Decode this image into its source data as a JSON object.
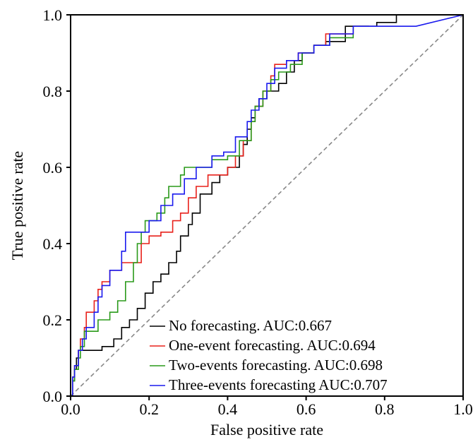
{
  "chart_data": {
    "type": "line",
    "title": "",
    "xlabel": "False positive rate",
    "ylabel": "True positive rate",
    "xlim": [
      0,
      1
    ],
    "ylim": [
      0,
      1
    ],
    "xticks": [
      0.0,
      0.2,
      0.4,
      0.6,
      0.8,
      1.0
    ],
    "yticks": [
      0.0,
      0.2,
      0.4,
      0.6,
      0.8,
      1.0
    ],
    "xtick_labels": [
      "0.0",
      "0.2",
      "0.4",
      "0.6",
      "0.8",
      "1.0"
    ],
    "ytick_labels": [
      "0.0",
      "0.2",
      "0.4",
      "0.6",
      "0.8",
      "1.0"
    ],
    "grid": false,
    "legend_position": "bottom-right",
    "diagonal": {
      "style": "dashed",
      "color": "#888888",
      "points": [
        [
          0,
          0
        ],
        [
          1,
          1
        ]
      ]
    },
    "series": [
      {
        "name": "No forecasting. AUC:0.667",
        "color": "#000000",
        "points": [
          [
            0,
            0
          ],
          [
            0.005,
            0
          ],
          [
            0.005,
            0.04
          ],
          [
            0.01,
            0.04
          ],
          [
            0.01,
            0.07
          ],
          [
            0.015,
            0.07
          ],
          [
            0.015,
            0.1
          ],
          [
            0.02,
            0.1
          ],
          [
            0.02,
            0.12
          ],
          [
            0.08,
            0.12
          ],
          [
            0.08,
            0.13
          ],
          [
            0.11,
            0.13
          ],
          [
            0.11,
            0.15
          ],
          [
            0.13,
            0.15
          ],
          [
            0.13,
            0.18
          ],
          [
            0.15,
            0.18
          ],
          [
            0.15,
            0.2
          ],
          [
            0.17,
            0.2
          ],
          [
            0.17,
            0.23
          ],
          [
            0.19,
            0.23
          ],
          [
            0.19,
            0.27
          ],
          [
            0.21,
            0.27
          ],
          [
            0.21,
            0.3
          ],
          [
            0.23,
            0.3
          ],
          [
            0.23,
            0.32
          ],
          [
            0.25,
            0.32
          ],
          [
            0.25,
            0.35
          ],
          [
            0.27,
            0.35
          ],
          [
            0.27,
            0.38
          ],
          [
            0.28,
            0.38
          ],
          [
            0.28,
            0.42
          ],
          [
            0.3,
            0.42
          ],
          [
            0.3,
            0.45
          ],
          [
            0.31,
            0.45
          ],
          [
            0.31,
            0.48
          ],
          [
            0.33,
            0.48
          ],
          [
            0.33,
            0.53
          ],
          [
            0.36,
            0.53
          ],
          [
            0.36,
            0.56
          ],
          [
            0.38,
            0.56
          ],
          [
            0.38,
            0.58
          ],
          [
            0.4,
            0.58
          ],
          [
            0.4,
            0.6
          ],
          [
            0.43,
            0.6
          ],
          [
            0.43,
            0.63
          ],
          [
            0.44,
            0.63
          ],
          [
            0.44,
            0.66
          ],
          [
            0.45,
            0.66
          ],
          [
            0.45,
            0.7
          ],
          [
            0.46,
            0.7
          ],
          [
            0.46,
            0.73
          ],
          [
            0.47,
            0.73
          ],
          [
            0.47,
            0.76
          ],
          [
            0.48,
            0.76
          ],
          [
            0.48,
            0.78
          ],
          [
            0.5,
            0.78
          ],
          [
            0.5,
            0.8
          ],
          [
            0.53,
            0.8
          ],
          [
            0.53,
            0.82
          ],
          [
            0.55,
            0.82
          ],
          [
            0.55,
            0.85
          ],
          [
            0.57,
            0.85
          ],
          [
            0.57,
            0.88
          ],
          [
            0.59,
            0.88
          ],
          [
            0.59,
            0.9
          ],
          [
            0.62,
            0.9
          ],
          [
            0.62,
            0.92
          ],
          [
            0.65,
            0.92
          ],
          [
            0.65,
            0.93
          ],
          [
            0.7,
            0.93
          ],
          [
            0.7,
            0.97
          ],
          [
            0.78,
            0.97
          ],
          [
            0.78,
            0.98
          ],
          [
            0.83,
            0.98
          ],
          [
            0.83,
            1.0
          ],
          [
            1.0,
            1.0
          ]
        ]
      },
      {
        "name": "One-event forecasting. AUC:0.694",
        "color": "#e8201a",
        "points": [
          [
            0,
            0
          ],
          [
            0.005,
            0
          ],
          [
            0.005,
            0.05
          ],
          [
            0.01,
            0.05
          ],
          [
            0.01,
            0.08
          ],
          [
            0.02,
            0.08
          ],
          [
            0.02,
            0.12
          ],
          [
            0.025,
            0.12
          ],
          [
            0.025,
            0.15
          ],
          [
            0.035,
            0.15
          ],
          [
            0.035,
            0.18
          ],
          [
            0.04,
            0.18
          ],
          [
            0.04,
            0.22
          ],
          [
            0.06,
            0.22
          ],
          [
            0.06,
            0.25
          ],
          [
            0.07,
            0.25
          ],
          [
            0.07,
            0.28
          ],
          [
            0.08,
            0.28
          ],
          [
            0.08,
            0.3
          ],
          [
            0.1,
            0.3
          ],
          [
            0.1,
            0.33
          ],
          [
            0.13,
            0.33
          ],
          [
            0.13,
            0.35
          ],
          [
            0.18,
            0.35
          ],
          [
            0.18,
            0.4
          ],
          [
            0.2,
            0.4
          ],
          [
            0.2,
            0.42
          ],
          [
            0.23,
            0.42
          ],
          [
            0.23,
            0.43
          ],
          [
            0.26,
            0.43
          ],
          [
            0.26,
            0.46
          ],
          [
            0.28,
            0.46
          ],
          [
            0.28,
            0.48
          ],
          [
            0.3,
            0.48
          ],
          [
            0.3,
            0.52
          ],
          [
            0.32,
            0.52
          ],
          [
            0.32,
            0.55
          ],
          [
            0.35,
            0.55
          ],
          [
            0.35,
            0.58
          ],
          [
            0.4,
            0.58
          ],
          [
            0.4,
            0.6
          ],
          [
            0.42,
            0.6
          ],
          [
            0.42,
            0.63
          ],
          [
            0.44,
            0.63
          ],
          [
            0.44,
            0.67
          ],
          [
            0.46,
            0.67
          ],
          [
            0.46,
            0.72
          ],
          [
            0.47,
            0.72
          ],
          [
            0.47,
            0.76
          ],
          [
            0.49,
            0.76
          ],
          [
            0.49,
            0.8
          ],
          [
            0.51,
            0.8
          ],
          [
            0.51,
            0.84
          ],
          [
            0.52,
            0.84
          ],
          [
            0.52,
            0.87
          ],
          [
            0.55,
            0.87
          ],
          [
            0.55,
            0.88
          ],
          [
            0.58,
            0.88
          ],
          [
            0.58,
            0.9
          ],
          [
            0.62,
            0.9
          ],
          [
            0.62,
            0.92
          ],
          [
            0.65,
            0.92
          ],
          [
            0.65,
            0.95
          ],
          [
            0.72,
            0.95
          ],
          [
            0.72,
            0.97
          ],
          [
            0.76,
            0.97
          ],
          [
            0.76,
            0.97
          ]
        ]
      },
      {
        "name": "Two-events forecasting. AUC:0.698",
        "color": "#2a9a1a",
        "points": [
          [
            0,
            0
          ],
          [
            0.005,
            0
          ],
          [
            0.005,
            0.04
          ],
          [
            0.01,
            0.04
          ],
          [
            0.01,
            0.07
          ],
          [
            0.02,
            0.07
          ],
          [
            0.02,
            0.1
          ],
          [
            0.025,
            0.1
          ],
          [
            0.025,
            0.13
          ],
          [
            0.035,
            0.13
          ],
          [
            0.035,
            0.17
          ],
          [
            0.07,
            0.17
          ],
          [
            0.07,
            0.2
          ],
          [
            0.1,
            0.2
          ],
          [
            0.1,
            0.22
          ],
          [
            0.12,
            0.22
          ],
          [
            0.12,
            0.25
          ],
          [
            0.14,
            0.25
          ],
          [
            0.14,
            0.3
          ],
          [
            0.16,
            0.3
          ],
          [
            0.16,
            0.35
          ],
          [
            0.17,
            0.35
          ],
          [
            0.17,
            0.4
          ],
          [
            0.18,
            0.4
          ],
          [
            0.18,
            0.43
          ],
          [
            0.19,
            0.43
          ],
          [
            0.19,
            0.46
          ],
          [
            0.22,
            0.46
          ],
          [
            0.22,
            0.48
          ],
          [
            0.24,
            0.48
          ],
          [
            0.24,
            0.52
          ],
          [
            0.25,
            0.52
          ],
          [
            0.25,
            0.55
          ],
          [
            0.28,
            0.55
          ],
          [
            0.28,
            0.58
          ],
          [
            0.29,
            0.58
          ],
          [
            0.29,
            0.6
          ],
          [
            0.36,
            0.6
          ],
          [
            0.36,
            0.62
          ],
          [
            0.4,
            0.62
          ],
          [
            0.4,
            0.63
          ],
          [
            0.43,
            0.63
          ],
          [
            0.43,
            0.67
          ],
          [
            0.46,
            0.67
          ],
          [
            0.46,
            0.72
          ],
          [
            0.47,
            0.72
          ],
          [
            0.47,
            0.76
          ],
          [
            0.49,
            0.76
          ],
          [
            0.49,
            0.8
          ],
          [
            0.51,
            0.8
          ],
          [
            0.51,
            0.83
          ],
          [
            0.53,
            0.83
          ],
          [
            0.53,
            0.85
          ],
          [
            0.56,
            0.85
          ],
          [
            0.56,
            0.87
          ],
          [
            0.59,
            0.87
          ],
          [
            0.59,
            0.9
          ],
          [
            0.62,
            0.9
          ],
          [
            0.62,
            0.92
          ],
          [
            0.66,
            0.92
          ],
          [
            0.66,
            0.94
          ],
          [
            0.72,
            0.94
          ],
          [
            0.72,
            0.97
          ],
          [
            0.76,
            0.97
          ],
          [
            0.76,
            0.97
          ]
        ]
      },
      {
        "name": "Three-events forecasting AUC:0.707",
        "color": "#1a1aee",
        "points": [
          [
            0,
            0
          ],
          [
            0.005,
            0
          ],
          [
            0.005,
            0.05
          ],
          [
            0.01,
            0.05
          ],
          [
            0.01,
            0.08
          ],
          [
            0.02,
            0.08
          ],
          [
            0.02,
            0.12
          ],
          [
            0.03,
            0.12
          ],
          [
            0.03,
            0.15
          ],
          [
            0.04,
            0.15
          ],
          [
            0.04,
            0.18
          ],
          [
            0.06,
            0.18
          ],
          [
            0.06,
            0.22
          ],
          [
            0.07,
            0.22
          ],
          [
            0.07,
            0.26
          ],
          [
            0.08,
            0.26
          ],
          [
            0.08,
            0.29
          ],
          [
            0.1,
            0.29
          ],
          [
            0.1,
            0.33
          ],
          [
            0.13,
            0.33
          ],
          [
            0.13,
            0.38
          ],
          [
            0.14,
            0.38
          ],
          [
            0.14,
            0.43
          ],
          [
            0.2,
            0.43
          ],
          [
            0.2,
            0.46
          ],
          [
            0.23,
            0.46
          ],
          [
            0.23,
            0.5
          ],
          [
            0.26,
            0.5
          ],
          [
            0.26,
            0.53
          ],
          [
            0.29,
            0.53
          ],
          [
            0.29,
            0.57
          ],
          [
            0.32,
            0.57
          ],
          [
            0.32,
            0.6
          ],
          [
            0.36,
            0.6
          ],
          [
            0.36,
            0.63
          ],
          [
            0.39,
            0.63
          ],
          [
            0.39,
            0.64
          ],
          [
            0.42,
            0.64
          ],
          [
            0.42,
            0.68
          ],
          [
            0.45,
            0.68
          ],
          [
            0.45,
            0.72
          ],
          [
            0.46,
            0.72
          ],
          [
            0.46,
            0.75
          ],
          [
            0.48,
            0.75
          ],
          [
            0.48,
            0.78
          ],
          [
            0.5,
            0.78
          ],
          [
            0.5,
            0.82
          ],
          [
            0.52,
            0.82
          ],
          [
            0.52,
            0.86
          ],
          [
            0.55,
            0.86
          ],
          [
            0.55,
            0.88
          ],
          [
            0.58,
            0.88
          ],
          [
            0.58,
            0.9
          ],
          [
            0.62,
            0.9
          ],
          [
            0.62,
            0.92
          ],
          [
            0.66,
            0.92
          ],
          [
            0.66,
            0.95
          ],
          [
            0.72,
            0.95
          ],
          [
            0.72,
            0.97
          ],
          [
            0.88,
            0.97
          ],
          [
            1.0,
            1.0
          ]
        ]
      }
    ]
  }
}
